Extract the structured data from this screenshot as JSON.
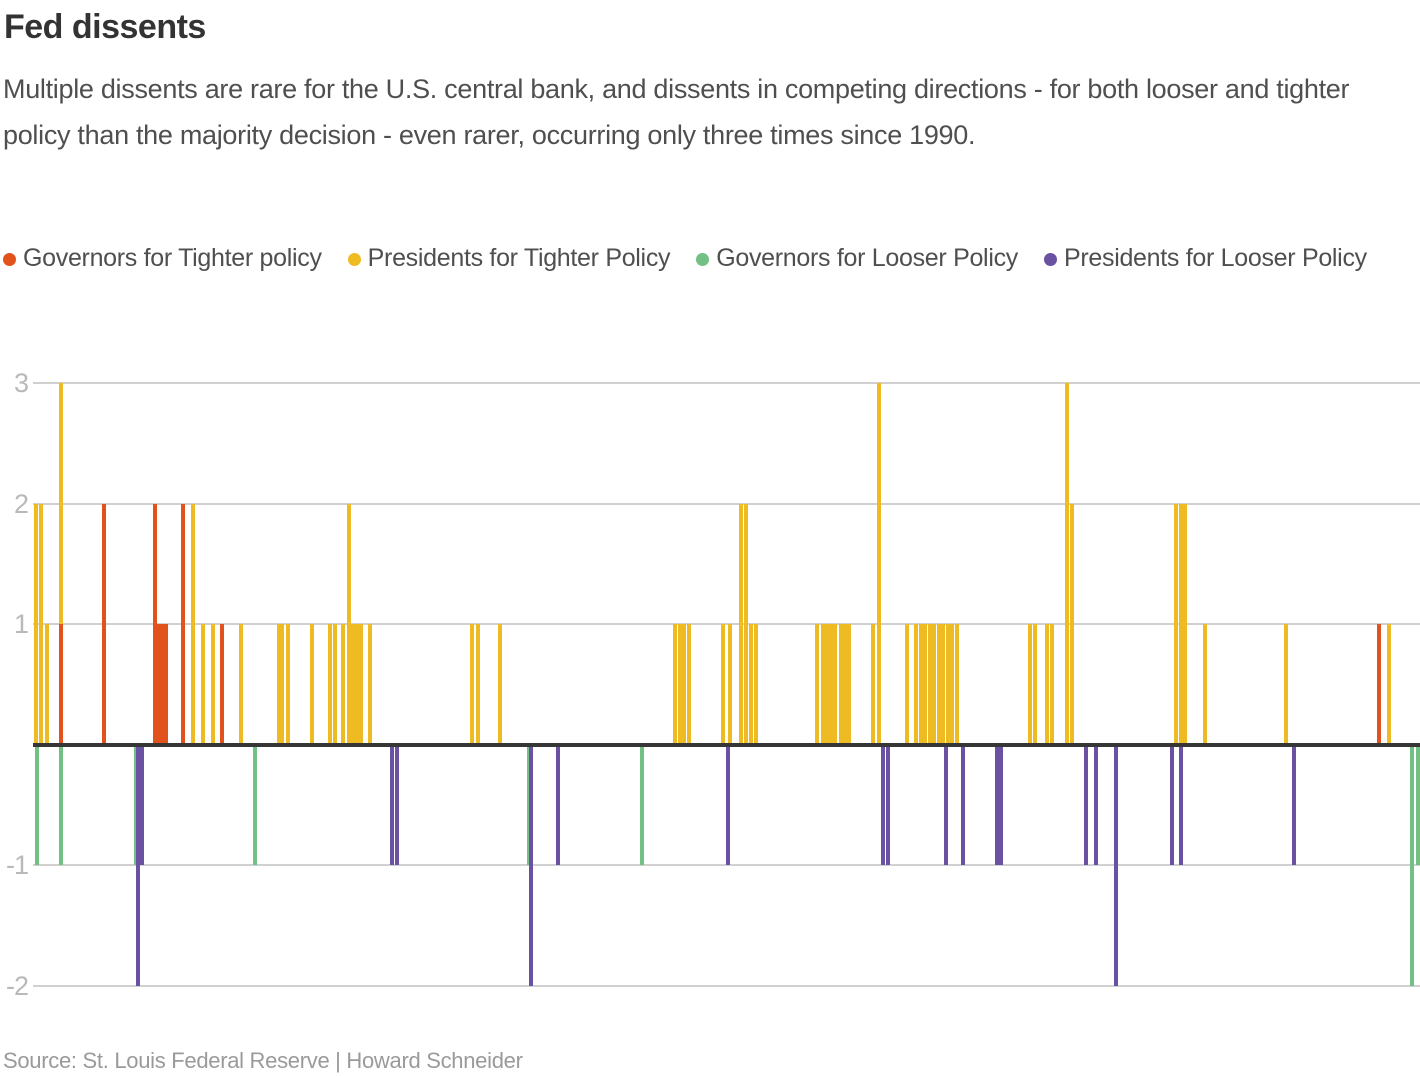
{
  "title": "Fed dissents",
  "subtitle": "Multiple dissents are rare for the U.S. central bank, and dissents in competing directions - for both looser and tighter policy than the majority decision - even rarer, occurring only three times since 1990.",
  "source": "Source: St. Louis Federal Reserve | Howard Schneider",
  "colors": {
    "governors_tighter": "#E2521C",
    "presidents_tighter": "#EFBB22",
    "governors_looser": "#72C083",
    "presidents_looser": "#6B51A1",
    "gridline": "#d0d0d0",
    "zero_line": "#363636",
    "tick_label": "#b9b9b9"
  },
  "legend": [
    {
      "key": "governors_tighter",
      "label": "Governors for Tighter policy"
    },
    {
      "key": "presidents_tighter",
      "label": "Presidents for Tighter Policy"
    },
    {
      "key": "governors_looser",
      "label": "Governors for Looser Policy"
    },
    {
      "key": "presidents_looser",
      "label": "Presidents for Looser Policy"
    }
  ],
  "chart_data": {
    "type": "bar",
    "title": "Fed dissents",
    "xlabel": "",
    "ylabel": "",
    "ylim": [
      -2,
      3
    ],
    "yticks": [
      3,
      2,
      1,
      -1,
      -2
    ],
    "grid": true,
    "legend_position": "top",
    "point_format": "[x_px_on_1420px_canvas, dissent_count]",
    "series": [
      {
        "name": "Presidents for Tighter Policy",
        "key": "presidents_tighter",
        "points": [
          [
            36,
            2
          ],
          [
            41,
            2
          ],
          [
            47,
            1
          ],
          [
            61,
            3
          ],
          [
            193,
            2
          ],
          [
            203,
            1
          ],
          [
            213,
            1
          ],
          [
            241,
            1
          ],
          [
            279,
            1
          ],
          [
            282,
            1
          ],
          [
            288,
            1
          ],
          [
            312,
            1
          ],
          [
            330,
            1
          ],
          [
            335,
            1
          ],
          [
            343,
            1
          ],
          [
            349,
            2
          ],
          [
            353,
            1
          ],
          [
            357,
            1
          ],
          [
            361,
            1
          ],
          [
            370,
            1
          ],
          [
            472,
            1
          ],
          [
            478,
            1
          ],
          [
            500,
            1
          ],
          [
            675,
            1
          ],
          [
            680,
            1
          ],
          [
            684,
            1
          ],
          [
            689,
            1
          ],
          [
            723,
            1
          ],
          [
            730,
            1
          ],
          [
            741,
            2
          ],
          [
            746,
            2
          ],
          [
            751,
            1
          ],
          [
            756,
            1
          ],
          [
            817,
            1
          ],
          [
            823,
            1
          ],
          [
            827,
            1
          ],
          [
            831,
            1
          ],
          [
            835,
            1
          ],
          [
            841,
            1
          ],
          [
            845,
            1
          ],
          [
            849,
            1
          ],
          [
            873,
            1
          ],
          [
            879,
            3
          ],
          [
            907,
            1
          ],
          [
            916,
            1
          ],
          [
            921,
            1
          ],
          [
            925,
            1
          ],
          [
            930,
            1
          ],
          [
            934,
            1
          ],
          [
            939,
            1
          ],
          [
            943,
            1
          ],
          [
            948,
            1
          ],
          [
            952,
            1
          ],
          [
            957,
            1
          ],
          [
            1030,
            1
          ],
          [
            1035,
            1
          ],
          [
            1047,
            1
          ],
          [
            1052,
            1
          ],
          [
            1067,
            3
          ],
          [
            1072,
            2
          ],
          [
            1176,
            2
          ],
          [
            1181,
            2
          ],
          [
            1185,
            2
          ],
          [
            1205,
            1
          ],
          [
            1286,
            1
          ],
          [
            1389,
            1
          ]
        ]
      },
      {
        "name": "Governors for Tighter policy",
        "key": "governors_tighter",
        "points": [
          [
            61,
            1
          ],
          [
            104,
            2
          ],
          [
            155,
            2
          ],
          [
            159,
            1
          ],
          [
            162,
            1
          ],
          [
            166,
            1
          ],
          [
            183,
            2
          ],
          [
            222,
            1
          ],
          [
            1379,
            1
          ]
        ]
      },
      {
        "name": "Governors for Looser Policy",
        "key": "governors_looser",
        "points": [
          [
            37,
            -1
          ],
          [
            61,
            -1
          ],
          [
            136,
            -1
          ],
          [
            255,
            -1
          ],
          [
            529,
            -1
          ],
          [
            642,
            -1
          ],
          [
            1412,
            -2
          ],
          [
            1418,
            -1
          ]
        ]
      },
      {
        "name": "Presidents for Looser Policy",
        "key": "presidents_looser",
        "points": [
          [
            138,
            -2
          ],
          [
            142,
            -1
          ],
          [
            392,
            -1
          ],
          [
            397,
            -1
          ],
          [
            531,
            -2
          ],
          [
            558,
            -1
          ],
          [
            728,
            -1
          ],
          [
            883,
            -1
          ],
          [
            888,
            -1
          ],
          [
            946,
            -1
          ],
          [
            963,
            -1
          ],
          [
            997,
            -1
          ],
          [
            1001,
            -1
          ],
          [
            1086,
            -1
          ],
          [
            1096,
            -1
          ],
          [
            1116,
            -2
          ],
          [
            1172,
            -1
          ],
          [
            1181,
            -1
          ],
          [
            1294,
            -1
          ]
        ]
      }
    ]
  }
}
